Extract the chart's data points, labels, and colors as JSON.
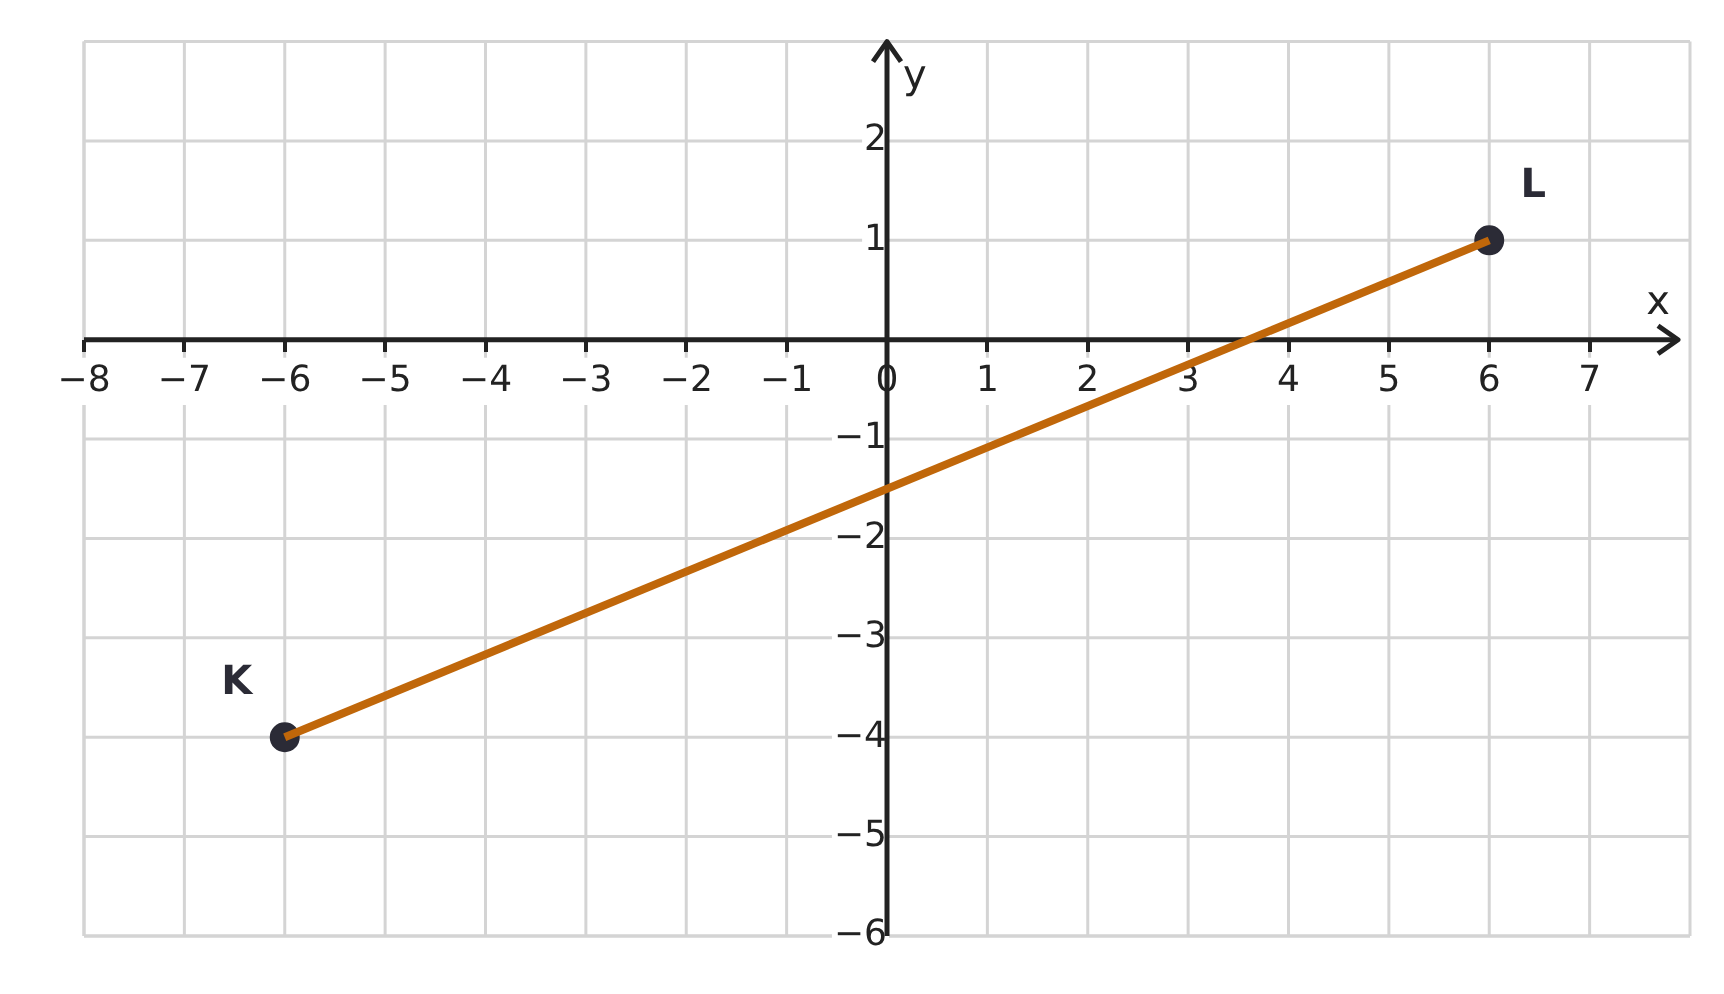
{
  "chart_data": {
    "type": "line",
    "xlabel": "x",
    "ylabel": "y",
    "xlim": [
      -8,
      8
    ],
    "ylim": [
      -6,
      3
    ],
    "xticks": [
      {
        "value": -8,
        "label": "−8"
      },
      {
        "value": -7,
        "label": "−7"
      },
      {
        "value": -6,
        "label": "−6"
      },
      {
        "value": -5,
        "label": "−5"
      },
      {
        "value": -4,
        "label": "−4"
      },
      {
        "value": -3,
        "label": "−3"
      },
      {
        "value": -2,
        "label": "−2"
      },
      {
        "value": -1,
        "label": "−1"
      },
      0,
      1,
      2,
      3,
      4,
      5,
      6,
      7
    ],
    "yticks": [
      {
        "value": -6,
        "label": "−6"
      },
      {
        "value": -5,
        "label": "−5"
      },
      {
        "value": -4,
        "label": "−4"
      },
      {
        "value": -3,
        "label": "−3"
      },
      {
        "value": -2,
        "label": "−2"
      },
      {
        "value": -1,
        "label": "−1"
      },
      1,
      2
    ],
    "grid": true,
    "x": [
      -6,
      6
    ],
    "series": [
      {
        "type": "line",
        "color": "#c0670a",
        "values": [
          -4,
          1
        ],
        "marker": "none",
        "line_style": "solid"
      },
      {
        "type": "scatter",
        "color": "#2b2b36",
        "values": [
          -4,
          1
        ],
        "marker": "circle"
      }
    ],
    "annotations": [
      {
        "text": "K",
        "x": -6,
        "y": -4
      },
      {
        "text": "L",
        "x": 6,
        "y": 1
      }
    ]
  }
}
